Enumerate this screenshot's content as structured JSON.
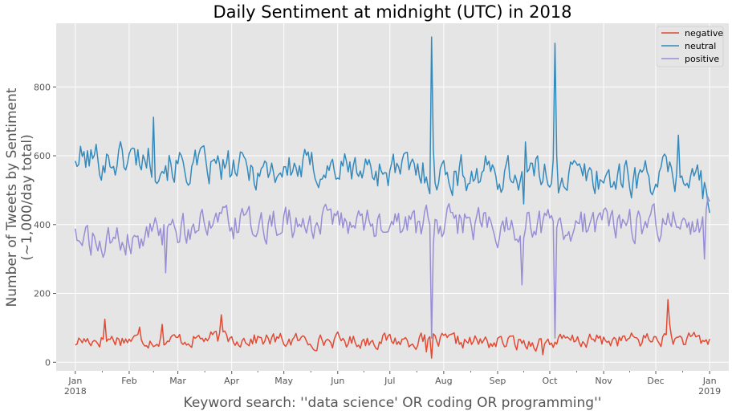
{
  "chart_data": {
    "type": "line",
    "title": "Daily Sentiment at midnight (UTC) in 2018",
    "xlabel": "Keyword search: ''data science' OR coding OR programming''",
    "ylabel_line1": "Number of Tweets by Sentiment",
    "ylabel_line2": "(~1,000/day total)",
    "x_start": "2018-01-01",
    "x_end": "2019-01-01",
    "xlim": [
      "2017-12-21",
      "2019-01-12"
    ],
    "ylim": [
      -25,
      985
    ],
    "yticks": [
      0,
      200,
      400,
      600,
      800
    ],
    "month_ticks": [
      {
        "label": "Jan",
        "sub": "2018",
        "date": "2018-01-01"
      },
      {
        "label": "Feb",
        "sub": "",
        "date": "2018-02-01"
      },
      {
        "label": "Mar",
        "sub": "",
        "date": "2018-03-01"
      },
      {
        "label": "Apr",
        "sub": "",
        "date": "2018-04-01"
      },
      {
        "label": "May",
        "sub": "",
        "date": "2018-05-01"
      },
      {
        "label": "Jun",
        "sub": "",
        "date": "2018-06-01"
      },
      {
        "label": "Jul",
        "sub": "",
        "date": "2018-07-01"
      },
      {
        "label": "Aug",
        "sub": "",
        "date": "2018-08-01"
      },
      {
        "label": "Sep",
        "sub": "",
        "date": "2018-09-01"
      },
      {
        "label": "Oct",
        "sub": "",
        "date": "2018-10-01"
      },
      {
        "label": "Nov",
        "sub": "",
        "date": "2018-11-01"
      },
      {
        "label": "Dec",
        "sub": "",
        "date": "2018-12-01"
      },
      {
        "label": "Jan",
        "sub": "2019",
        "date": "2019-01-01"
      }
    ],
    "grid": true,
    "legend_position": "top-right",
    "series": [
      {
        "name": "negative",
        "color": "#E24A33",
        "baseline": [
          [
            1,
            62
          ],
          [
            20,
            68
          ],
          [
            40,
            66
          ],
          [
            60,
            65
          ],
          [
            80,
            70
          ],
          [
            100,
            68
          ],
          [
            120,
            63
          ],
          [
            140,
            63
          ],
          [
            160,
            62
          ],
          [
            180,
            65
          ],
          [
            200,
            62
          ],
          [
            220,
            60
          ],
          [
            240,
            57
          ],
          [
            260,
            58
          ],
          [
            280,
            60
          ],
          [
            300,
            63
          ],
          [
            320,
            65
          ],
          [
            340,
            68
          ],
          [
            365,
            60
          ]
        ],
        "amplitude": 22,
        "events": [
          [
            1,
            50
          ],
          [
            18,
            125
          ],
          [
            38,
            102
          ],
          [
            51,
            110
          ],
          [
            85,
            138
          ],
          [
            203,
            30
          ],
          [
            206,
            12
          ],
          [
            270,
            22
          ],
          [
            342,
            182
          ],
          [
            343,
            110
          ],
          [
            365,
            52
          ]
        ]
      },
      {
        "name": "neutral",
        "color": "#348ABD",
        "baseline": [
          [
            1,
            590
          ],
          [
            20,
            590
          ],
          [
            40,
            600
          ],
          [
            60,
            570
          ],
          [
            80,
            560
          ],
          [
            100,
            560
          ],
          [
            120,
            560
          ],
          [
            140,
            565
          ],
          [
            160,
            560
          ],
          [
            180,
            560
          ],
          [
            200,
            555
          ],
          [
            210,
            545
          ],
          [
            230,
            550
          ],
          [
            250,
            550
          ],
          [
            270,
            545
          ],
          [
            290,
            545
          ],
          [
            310,
            535
          ],
          [
            330,
            540
          ],
          [
            350,
            545
          ],
          [
            360,
            540
          ],
          [
            365,
            470
          ]
        ],
        "amplitude": 55,
        "events": [
          [
            1,
            585
          ],
          [
            46,
            712
          ],
          [
            206,
            945
          ],
          [
            207,
            620
          ],
          [
            259,
            460
          ],
          [
            260,
            640
          ],
          [
            276,
            590
          ],
          [
            277,
            927
          ],
          [
            278,
            600
          ],
          [
            348,
            660
          ],
          [
            362,
            475
          ]
        ]
      },
      {
        "name": "positive",
        "color": "#988ED5",
        "baseline": [
          [
            1,
            370
          ],
          [
            20,
            345
          ],
          [
            40,
            350
          ],
          [
            60,
            395
          ],
          [
            80,
            395
          ],
          [
            100,
            395
          ],
          [
            120,
            400
          ],
          [
            140,
            400
          ],
          [
            160,
            395
          ],
          [
            180,
            395
          ],
          [
            200,
            400
          ],
          [
            210,
            405
          ],
          [
            230,
            400
          ],
          [
            250,
            395
          ],
          [
            270,
            400
          ],
          [
            290,
            395
          ],
          [
            310,
            410
          ],
          [
            330,
            405
          ],
          [
            350,
            400
          ],
          [
            360,
            380
          ],
          [
            365,
            470
          ]
        ],
        "amplitude": 50,
        "events": [
          [
            1,
            388
          ],
          [
            53,
            260
          ],
          [
            206,
            70
          ],
          [
            207,
            340
          ],
          [
            258,
            225
          ],
          [
            259,
            360
          ],
          [
            277,
            70
          ],
          [
            278,
            390
          ],
          [
            363,
            300
          ],
          [
            365,
            480
          ]
        ]
      }
    ]
  }
}
